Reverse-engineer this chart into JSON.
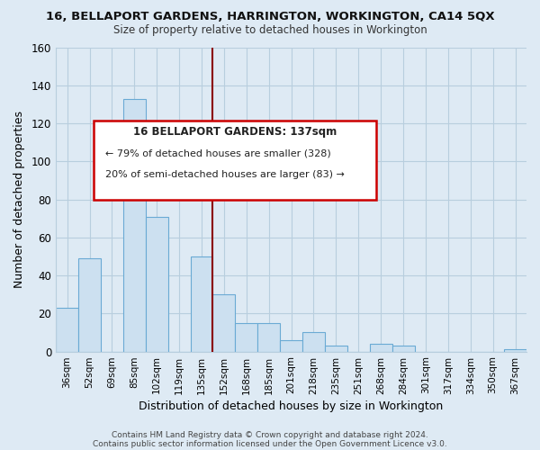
{
  "title": "16, BELLAPORT GARDENS, HARRINGTON, WORKINGTON, CA14 5QX",
  "subtitle": "Size of property relative to detached houses in Workington",
  "xlabel": "Distribution of detached houses by size in Workington",
  "ylabel": "Number of detached properties",
  "bar_color": "#cce0f0",
  "bar_edge_color": "#6aaad4",
  "bg_color": "#deeaf4",
  "plot_bg_color": "#deeaf4",
  "categories": [
    "36sqm",
    "52sqm",
    "69sqm",
    "85sqm",
    "102sqm",
    "119sqm",
    "135sqm",
    "152sqm",
    "168sqm",
    "185sqm",
    "201sqm",
    "218sqm",
    "235sqm",
    "251sqm",
    "268sqm",
    "284sqm",
    "301sqm",
    "317sqm",
    "334sqm",
    "350sqm",
    "367sqm"
  ],
  "values": [
    23,
    49,
    0,
    133,
    71,
    0,
    50,
    30,
    15,
    15,
    6,
    10,
    3,
    0,
    4,
    3,
    0,
    0,
    0,
    0,
    1
  ],
  "ylim": [
    0,
    160
  ],
  "yticks": [
    0,
    20,
    40,
    60,
    80,
    100,
    120,
    140,
    160
  ],
  "annotation_title": "16 BELLAPORT GARDENS: 137sqm",
  "annotation_line1": "← 79% of detached houses are smaller (328)",
  "annotation_line2": "20% of semi-detached houses are larger (83) →",
  "vline_color": "#8b0000",
  "vline_x": 6.5,
  "footer1": "Contains HM Land Registry data © Crown copyright and database right 2024.",
  "footer2": "Contains public sector information licensed under the Open Government Licence v3.0.",
  "grid_color": "#b8cede",
  "annotation_box_edgecolor": "#cc0000",
  "annotation_text_color": "#222222"
}
